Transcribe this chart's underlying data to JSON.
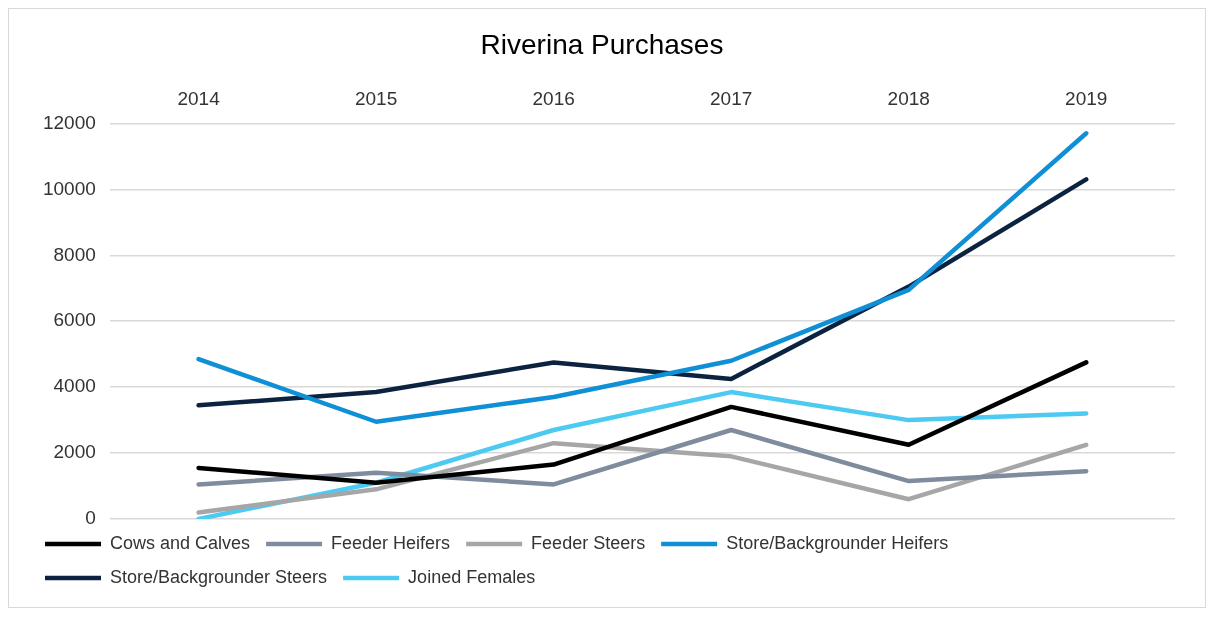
{
  "chart_data": {
    "type": "line",
    "title": "Riverina Purchases",
    "categories": [
      "2014",
      "2015",
      "2016",
      "2017",
      "2018",
      "2019"
    ],
    "series": [
      {
        "name": "Cows and Calves",
        "color": "#000000",
        "values": [
          1550,
          1100,
          1650,
          3400,
          2250,
          4750
        ]
      },
      {
        "name": "Feeder Heifers",
        "color": "#7f8c9d",
        "values": [
          1050,
          1400,
          1050,
          2700,
          1150,
          1450
        ]
      },
      {
        "name": "Feeder Steers",
        "color": "#a6a6a6",
        "values": [
          200,
          900,
          2300,
          1900,
          600,
          2250
        ]
      },
      {
        "name": "Store/Backgrounder Heifers",
        "color": "#0e8fd6",
        "values": [
          4850,
          2950,
          3700,
          4800,
          6950,
          11700
        ]
      },
      {
        "name": "Store/Backgrounder Steers",
        "color": "#0c2340",
        "values": [
          3450,
          3850,
          4750,
          4250,
          7050,
          10300
        ]
      },
      {
        "name": "Joined Females",
        "color": "#4ccaf2",
        "values": [
          0,
          1100,
          2700,
          3850,
          3000,
          3200
        ]
      }
    ],
    "ylim": [
      0,
      12000
    ],
    "yticks": [
      0,
      2000,
      4000,
      6000,
      8000,
      10000,
      12000
    ],
    "grid": "y",
    "legend": "bottom",
    "marker": "none",
    "line_style": "solid"
  }
}
